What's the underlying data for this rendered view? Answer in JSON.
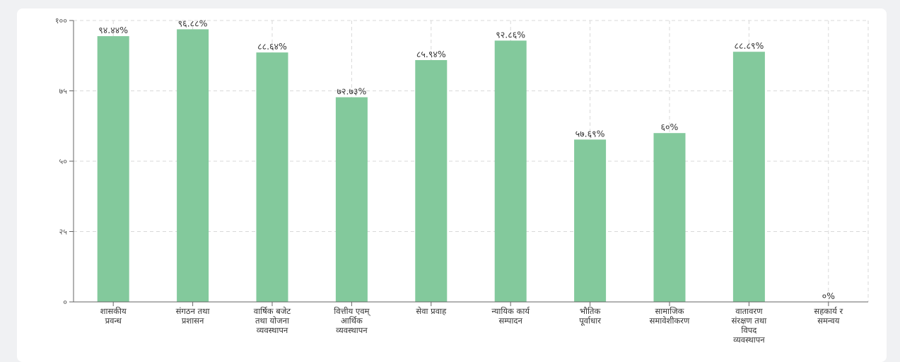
{
  "chart_data": {
    "type": "bar",
    "categories": [
      [
        "शासकीय",
        "प्रवन्ध"
      ],
      [
        "संगठन तथा",
        "प्रशासन"
      ],
      [
        "वार्षिक बजेट",
        "तथा योजना",
        "व्यवस्थापन"
      ],
      [
        "वित्तीय एवम्",
        "आर्थिक",
        "व्यवस्थापन"
      ],
      [
        "सेवा प्रवाह"
      ],
      [
        "न्यायिक कार्य",
        "सम्पादन"
      ],
      [
        "भौतिक",
        "पूर्वाधार"
      ],
      [
        "सामाजिक",
        "समावेशीकरण"
      ],
      [
        "वातावरण",
        "संरक्षण तथा",
        "विपद",
        "व्यवस्थापन"
      ],
      [
        "सहकार्य र",
        "समन्वय"
      ]
    ],
    "values": [
      94.44,
      96.88,
      88.64,
      72.73,
      85.94,
      92.86,
      57.69,
      60,
      88.89,
      0
    ],
    "value_labels": [
      "९४.४४%",
      "९६.८८%",
      "८८.६४%",
      "७२.७३%",
      "८५.९४%",
      "९२.८६%",
      "५७.६९%",
      "६०%",
      "८८.८९%",
      "०%"
    ],
    "yticks": [
      0,
      25,
      50,
      75,
      100
    ],
    "ytick_labels": [
      "०",
      "२५",
      "५०",
      "७५",
      "१००"
    ],
    "ylim": [
      0,
      100
    ],
    "grid": true,
    "colors": {
      "bar": "#83c99c",
      "grid": "#d9d9d9",
      "axis": "#666666"
    }
  }
}
